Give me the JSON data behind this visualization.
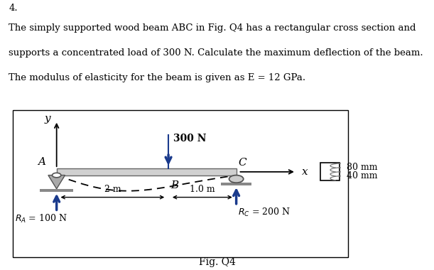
{
  "title_number": "4.",
  "text_line1": "The simply supported wood beam ABC in Fig. Q4 has a rectangular cross section and",
  "text_line2": "supports a concentrated load of 300 N. Calculate the maximum deflection of the beam.",
  "text_line3": "The modulus of elasticity for the beam is given as E = 12 GPa.",
  "fig_label": "Fig. Q4",
  "beam_color": "#d0d0d0",
  "beam_edge_color": "#666666",
  "arrow_color": "#1a3a8c",
  "support_color": "#aaaaaa",
  "ground_color": "#888888",
  "load_value": "300 N",
  "dim_2m": "2 m",
  "dim_1m": "1.0 m",
  "cross_80": "80 mm",
  "cross_40": "40 mm",
  "fontsize_text": 9.5,
  "fontsize_label": 10,
  "fontsize_small": 9
}
